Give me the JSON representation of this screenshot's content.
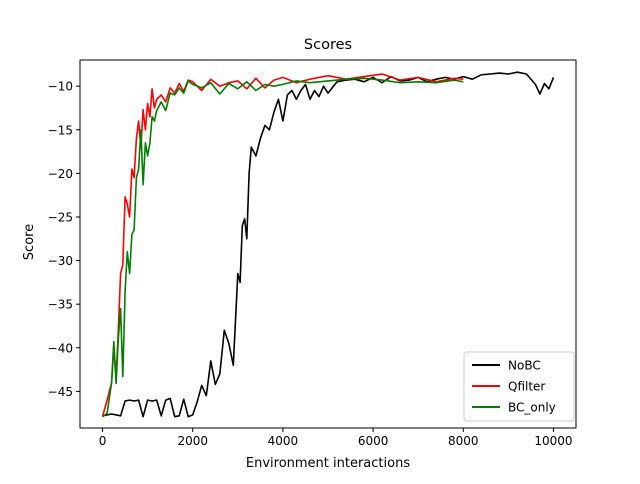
{
  "chart_data": {
    "type": "line",
    "title": "Scores",
    "xlabel": "Environment interactions",
    "ylabel": "Score",
    "xlim": [
      -500,
      10500
    ],
    "ylim": [
      -49.2,
      -7.0
    ],
    "x_ticks": [
      0,
      2000,
      4000,
      6000,
      8000,
      10000
    ],
    "x_tick_labels": [
      "0",
      "2000",
      "4000",
      "6000",
      "8000",
      "10000"
    ],
    "y_ticks": [
      -45,
      -40,
      -35,
      -30,
      -25,
      -20,
      -15,
      -10
    ],
    "y_tick_labels": [
      "−45",
      "−40",
      "−35",
      "−30",
      "−25",
      "−20",
      "−15",
      "−10"
    ],
    "grid": false,
    "legend_position": "lower-right",
    "series": [
      {
        "name": "NoBC",
        "color": "#000000",
        "x": [
          0,
          200,
          400,
          500,
          600,
          700,
          800,
          900,
          1000,
          1100,
          1200,
          1300,
          1400,
          1500,
          1600,
          1700,
          1800,
          1900,
          2000,
          2100,
          2200,
          2300,
          2400,
          2500,
          2600,
          2700,
          2800,
          2900,
          3000,
          3050,
          3100,
          3150,
          3200,
          3250,
          3300,
          3400,
          3500,
          3600,
          3700,
          3800,
          3900,
          4000,
          4100,
          4200,
          4300,
          4400,
          4500,
          4600,
          4700,
          4800,
          4900,
          5000,
          5200,
          5400,
          5600,
          5800,
          6000,
          6200,
          6400,
          6600,
          6800,
          7000,
          7200,
          7400,
          7600,
          7800,
          8000,
          8200,
          8400,
          8600,
          8800,
          9000,
          9200,
          9400,
          9600,
          9700,
          9800,
          9900,
          10000
        ],
        "values": [
          -47.8,
          -47.6,
          -47.8,
          -46.1,
          -46.0,
          -46.1,
          -46.0,
          -47.9,
          -46.0,
          -46.1,
          -46.0,
          -47.8,
          -46.0,
          -45.8,
          -47.9,
          -47.8,
          -45.9,
          -47.9,
          -47.7,
          -46.2,
          -44.3,
          -45.5,
          -41.5,
          -44.2,
          -43.0,
          -38.0,
          -39.5,
          -42.0,
          -31.5,
          -32.5,
          -26.0,
          -25.2,
          -27.5,
          -20.0,
          -17.0,
          -18.0,
          -16.0,
          -14.5,
          -15.0,
          -13.0,
          -11.5,
          -14.0,
          -11.0,
          -10.5,
          -11.5,
          -10.5,
          -9.8,
          -11.5,
          -10.5,
          -11.2,
          -10.0,
          -10.8,
          -9.5,
          -9.3,
          -9.2,
          -9.5,
          -9.0,
          -9.6,
          -8.9,
          -9.4,
          -9.3,
          -9.0,
          -9.5,
          -9.2,
          -9.0,
          -9.2,
          -8.9,
          -9.2,
          -8.7,
          -8.6,
          -8.5,
          -8.6,
          -8.4,
          -8.6,
          -9.8,
          -10.9,
          -9.7,
          -10.3,
          -9.0
        ]
      },
      {
        "name": "Qfilter",
        "color": "#ff0000",
        "x": [
          0,
          100,
          200,
          250,
          300,
          350,
          400,
          450,
          500,
          550,
          600,
          650,
          700,
          750,
          800,
          850,
          900,
          950,
          1000,
          1050,
          1100,
          1150,
          1200,
          1300,
          1400,
          1500,
          1600,
          1700,
          1800,
          1900,
          2000,
          2200,
          2400,
          2600,
          2800,
          3000,
          3200,
          3400,
          3600,
          3800,
          4000,
          4300,
          4600,
          5000,
          5400,
          5800,
          6200,
          6600,
          7000,
          7400,
          7800,
          8000
        ],
        "values": [
          -47.9,
          -46.0,
          -44.0,
          -40.0,
          -43.5,
          -38.0,
          -31.5,
          -30.5,
          -22.7,
          -23.5,
          -25.0,
          -19.5,
          -20.5,
          -16.0,
          -14.0,
          -17.0,
          -12.7,
          -15.0,
          -12.0,
          -13.5,
          -10.3,
          -12.5,
          -11.5,
          -11.0,
          -11.8,
          -10.2,
          -10.8,
          -9.7,
          -10.6,
          -9.3,
          -9.5,
          -10.5,
          -9.2,
          -10.0,
          -9.6,
          -9.4,
          -10.3,
          -9.1,
          -10.2,
          -9.3,
          -9.0,
          -9.6,
          -9.2,
          -8.8,
          -9.2,
          -8.9,
          -8.6,
          -9.3,
          -9.0,
          -9.5,
          -9.1,
          -9.2
        ]
      },
      {
        "name": "BC_only",
        "color": "#008000",
        "x": [
          0,
          100,
          200,
          250,
          300,
          350,
          400,
          450,
          500,
          550,
          600,
          650,
          700,
          750,
          800,
          850,
          900,
          950,
          1000,
          1050,
          1100,
          1150,
          1200,
          1300,
          1400,
          1500,
          1600,
          1700,
          1800,
          1900,
          2000,
          2200,
          2400,
          2600,
          2800,
          3000,
          3200,
          3400,
          3600,
          3800,
          4000,
          4300,
          4600,
          5000,
          5400,
          5800,
          6200,
          6600,
          7000,
          7400,
          7800,
          8000
        ],
        "values": [
          -47.9,
          -47.5,
          -44.0,
          -39.3,
          -44.1,
          -39.0,
          -35.5,
          -43.3,
          -33.5,
          -29.0,
          -31.5,
          -27.0,
          -26.5,
          -20.5,
          -19.5,
          -15.0,
          -21.3,
          -16.5,
          -18.0,
          -16.5,
          -13.5,
          -14.0,
          -12.8,
          -11.8,
          -12.8,
          -10.8,
          -11.0,
          -10.2,
          -10.8,
          -9.4,
          -9.8,
          -10.2,
          -9.6,
          -10.9,
          -9.7,
          -10.3,
          -9.5,
          -10.5,
          -9.8,
          -10.0,
          -9.8,
          -9.4,
          -9.6,
          -9.4,
          -9.2,
          -9.1,
          -9.3,
          -9.6,
          -9.5,
          -9.6,
          -9.3,
          -9.5
        ]
      }
    ]
  }
}
